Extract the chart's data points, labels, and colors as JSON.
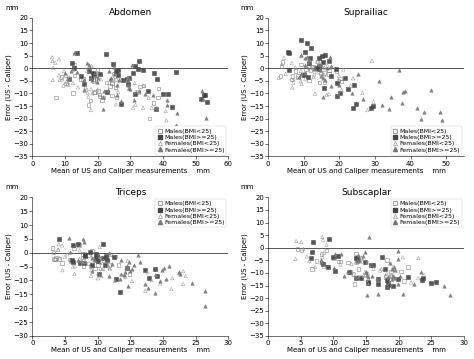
{
  "panels": [
    {
      "title": "Abdomen",
      "xlabel": "Mean of US and Caliper measurements",
      "ylabel": "Error (US - Caliper)",
      "xlim": [
        0,
        60
      ],
      "ylim": [
        -35,
        20
      ],
      "xticks": [
        0,
        10,
        20,
        30,
        40,
        50,
        60
      ],
      "yticks": [
        -35,
        -30,
        -25,
        -20,
        -15,
        -10,
        -5,
        0,
        5,
        10,
        15,
        20
      ],
      "xunits": "mm",
      "legend_loc": "lower right",
      "legend_inside": true
    },
    {
      "title": "Suprailiac",
      "xlabel": "Mean of US and Caliper measurements",
      "ylabel": "Error (US - Caliper)",
      "xlim": [
        0,
        55
      ],
      "ylim": [
        -35,
        20
      ],
      "xticks": [
        0,
        10,
        20,
        30,
        40,
        50
      ],
      "yticks": [
        -35,
        -30,
        -25,
        -20,
        -15,
        -10,
        -5,
        0,
        5,
        10,
        15,
        20
      ],
      "xunits": "mm",
      "legend_loc": "lower right",
      "legend_inside": true
    },
    {
      "title": "Triceps",
      "xlabel": "Mean of US and Caliper measurements",
      "ylabel": "Error (US - Caliper)",
      "xlim": [
        0,
        30
      ],
      "ylim": [
        -30,
        20
      ],
      "xticks": [
        0,
        5,
        10,
        15,
        20,
        25,
        30
      ],
      "yticks": [
        -30,
        -25,
        -20,
        -15,
        -10,
        -5,
        0,
        5,
        10,
        15,
        20
      ],
      "xunits": "mm",
      "legend_loc": "upper right",
      "legend_inside": true
    },
    {
      "title": "Subscaplar",
      "xlabel": "Mean of US and Caliper measurements",
      "ylabel": "Error (US - Caliper)",
      "xlim": [
        0,
        30
      ],
      "ylim": [
        -35,
        20
      ],
      "xticks": [
        0,
        5,
        10,
        15,
        20,
        25,
        30
      ],
      "yticks": [
        -35,
        -30,
        -25,
        -20,
        -15,
        -10,
        -5,
        0,
        5,
        10,
        15,
        20
      ],
      "xunits": "mm",
      "legend_loc": "upper right",
      "legend_inside": true
    }
  ],
  "colors": {
    "male_lean_edge": "#777777",
    "male_obese_face": "#444444",
    "female_lean_edge": "#999999",
    "female_obese_face": "#777777"
  },
  "legend_labels": [
    "Males(BMI<25)",
    "Males(BMI>=25)",
    "Females(BMI<25)",
    "Females(BMI>=25)"
  ],
  "fontsize_title": 6.5,
  "fontsize_tick": 5.0,
  "fontsize_label": 5.0,
  "fontsize_legend": 4.5,
  "marker_size": 6
}
